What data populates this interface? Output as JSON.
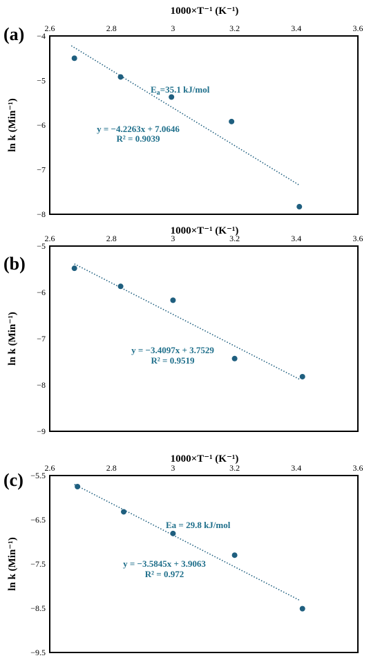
{
  "chart_data": [
    {
      "type": "scatter",
      "panel_label": "(a)",
      "xlabel": "1000×T⁻¹ (K⁻¹)",
      "ylabel": "ln k (Min⁻¹)",
      "xlim": [
        2.6,
        3.6
      ],
      "ylim": [
        -8,
        -4
      ],
      "xticks": [
        2.6,
        2.8,
        3,
        3.2,
        3.4,
        3.6
      ],
      "yticks": [
        -4,
        -5,
        -6,
        -7,
        -8
      ],
      "x": [
        2.68,
        2.83,
        2.995,
        3.19,
        3.41
      ],
      "y": [
        -4.5,
        -4.92,
        -5.37,
        -5.92,
        -7.83
      ],
      "trendline": {
        "slope": -4.2263,
        "intercept": 7.0646,
        "x_range": [
          2.67,
          3.41
        ]
      },
      "equation": "y = −4.2263x + 7.0646",
      "r2": "R² = 0.9039",
      "ea_label": "Ea=35.1 kJ/mol",
      "ea_prefix": "E",
      "ea_sub": "a",
      "ea_value": "=35.1 kJ/mol",
      "color": "#1f5f7f"
    },
    {
      "type": "scatter",
      "panel_label": "(b)",
      "xlabel": "1000×T⁻¹ (K⁻¹)",
      "ylabel": "ln k (Min⁻¹)",
      "xlim": [
        2.6,
        3.6
      ],
      "ylim": [
        -9,
        -5
      ],
      "xticks": [
        2.6,
        2.8,
        3,
        3.2,
        3.4,
        3.6
      ],
      "yticks": [
        -5,
        -6,
        -7,
        -8,
        -9
      ],
      "x": [
        2.68,
        2.83,
        3.0,
        3.2,
        3.42
      ],
      "y": [
        -5.48,
        -5.87,
        -6.17,
        -7.43,
        -7.82
      ],
      "trendline": {
        "slope": -3.4097,
        "intercept": 3.7529,
        "x_range": [
          2.68,
          3.41
        ]
      },
      "equation": "y = −3.4097x + 3.7529",
      "r2": "R² = 0.9519",
      "color": "#1f5f7f"
    },
    {
      "type": "scatter",
      "panel_label": "(c)",
      "xlabel": "1000×T⁻¹ (K⁻¹)",
      "ylabel": "ln k (Min⁻¹)",
      "xlim": [
        2.6,
        3.6
      ],
      "ylim": [
        -9.5,
        -5.5
      ],
      "xticks": [
        2.6,
        2.8,
        3,
        3.2,
        3.4,
        3.6
      ],
      "yticks": [
        -5.5,
        -6.5,
        -7.5,
        -8.5,
        -9.5
      ],
      "x": [
        2.69,
        2.84,
        3.0,
        3.2,
        3.42
      ],
      "y": [
        -5.75,
        -6.32,
        -6.81,
        -7.3,
        -8.51
      ],
      "trendline": {
        "slope": -3.5845,
        "intercept": 3.9063,
        "x_range": [
          2.68,
          3.41
        ]
      },
      "equation": "y = −3.5845x + 3.9063",
      "r2": "R² = 0.972",
      "ea_label": "Ea = 29.8 kJ/mol",
      "color": "#1f5f7f"
    }
  ]
}
